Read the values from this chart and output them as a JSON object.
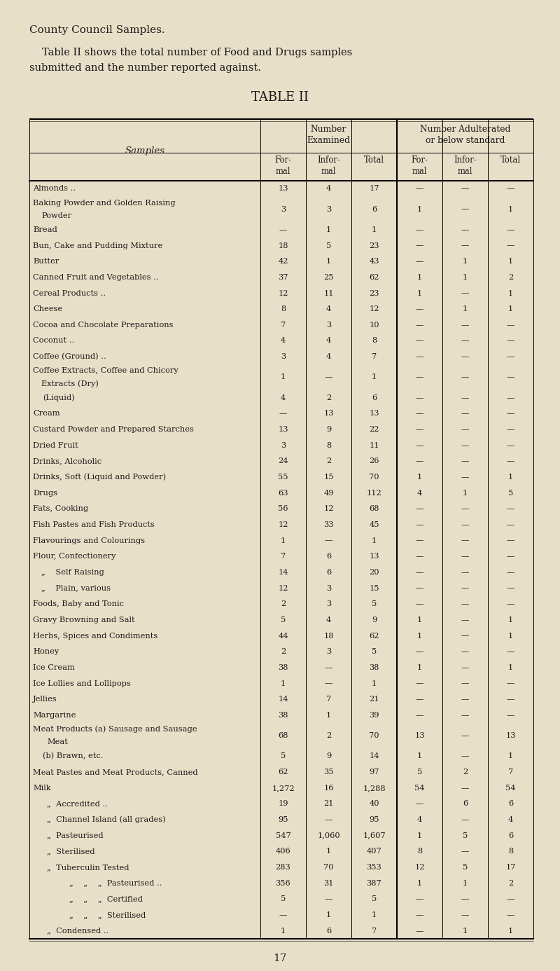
{
  "title_main": "County Council Samples.",
  "subtitle_line1": "Table II shows the total number of Food and Drugs samples",
  "subtitle_line2": "submitted and the number reported against.",
  "table_title": "TABLE II",
  "bg_color": "#e8dfc8",
  "rows": [
    [
      "Almonds ..",
      "13",
      "4",
      "17",
      "—",
      "—",
      "—"
    ],
    [
      "Baking Powder and Golden Raising\n    Powder",
      "3",
      "3",
      "6",
      "1",
      "—",
      "1"
    ],
    [
      "Bread",
      "—",
      "1",
      "1",
      "—",
      "—",
      "—"
    ],
    [
      "Bun, Cake and Pudding Mixture",
      "18",
      "5",
      "23",
      "—",
      "—",
      "—"
    ],
    [
      "Butter",
      "42",
      "1",
      "43",
      "—",
      "1",
      "1"
    ],
    [
      "Canned Fruit and Vegetables ..",
      "37",
      "25",
      "62",
      "1",
      "1",
      "2"
    ],
    [
      "Cereal Products ..",
      "12",
      "11",
      "23",
      "1",
      "—",
      "1"
    ],
    [
      "Cheese",
      "8",
      "4",
      "12",
      "—",
      "1",
      "1"
    ],
    [
      "Cocoa and Chocolate Preparations",
      "7",
      "3",
      "10",
      "—",
      "—",
      "—"
    ],
    [
      "Coconut ..",
      "4",
      "4",
      "8",
      "—",
      "—",
      "—"
    ],
    [
      "Coffee (Ground) ..",
      "3",
      "4",
      "7",
      "—",
      "—",
      "—"
    ],
    [
      "Coffee Extracts, Coffee and Chicory\n    Extracts (Dry)",
      "1",
      "—",
      "1",
      "—",
      "—",
      "—"
    ],
    [
      "    (Liquid)",
      "4",
      "2",
      "6",
      "—",
      "—",
      "—"
    ],
    [
      "Cream",
      "—",
      "13",
      "13",
      "—",
      "—",
      "—"
    ],
    [
      "Custard Powder and Prepared Starches",
      "13",
      "9",
      "22",
      "—",
      "—",
      "—"
    ],
    [
      "Dried Fruit",
      "3",
      "8",
      "11",
      "—",
      "—",
      "—"
    ],
    [
      "Drinks, Alcoholic",
      "24",
      "2",
      "26",
      "—",
      "—",
      "—"
    ],
    [
      "Drinks, Soft (Liquid and Powder)",
      "55",
      "15",
      "70",
      "1",
      "—",
      "1"
    ],
    [
      "Drugs",
      "63",
      "49",
      "112",
      "4",
      "1",
      "5"
    ],
    [
      "Fats, Cooking",
      "56",
      "12",
      "68",
      "—",
      "—",
      "—"
    ],
    [
      "Fish Pastes and Fish Products",
      "12",
      "33",
      "45",
      "—",
      "—",
      "—"
    ],
    [
      "Flavourings and Colourings",
      "1",
      "—",
      "1",
      "—",
      "—",
      "—"
    ],
    [
      "Flour, Confectionery",
      "7",
      "6",
      "13",
      "—",
      "—",
      "—"
    ],
    [
      "„    Self Raising",
      "14",
      "6",
      "20",
      "—",
      "—",
      "—"
    ],
    [
      "„    Plain, various",
      "12",
      "3",
      "15",
      "—",
      "—",
      "—"
    ],
    [
      "Foods, Baby and Tonic",
      "2",
      "3",
      "5",
      "—",
      "—",
      "—"
    ],
    [
      "Gravy Browning and Salt",
      "5",
      "4",
      "9",
      "1",
      "—",
      "1"
    ],
    [
      "Herbs, Spices and Condiments",
      "44",
      "18",
      "62",
      "1",
      "—",
      "1"
    ],
    [
      "Honey",
      "2",
      "3",
      "5",
      "—",
      "—",
      "—"
    ],
    [
      "Ice Cream",
      "38",
      "—",
      "38",
      "1",
      "—",
      "1"
    ],
    [
      "Ice Lollies and Lollipops",
      "1",
      "—",
      "1",
      "—",
      "—",
      "—"
    ],
    [
      "Jellies",
      "14",
      "7",
      "21",
      "—",
      "—",
      "—"
    ],
    [
      "Margarine",
      "38",
      "1",
      "39",
      "—",
      "—",
      "—"
    ],
    [
      "Meat Products (a) Sausage and Sausage\n        Meat",
      "68",
      "2",
      "70",
      "13",
      "—",
      "13"
    ],
    [
      "    (b) Brawn, etc.",
      "5",
      "9",
      "14",
      "1",
      "—",
      "1"
    ],
    [
      "Meat Pastes and Meat Products, Canned",
      "62",
      "35",
      "97",
      "5",
      "2",
      "7"
    ],
    [
      "Milk",
      "1,272",
      "16",
      "1,288",
      "54",
      "—",
      "54"
    ],
    [
      "  „  Accredited ..",
      "19",
      "21",
      "40",
      "—",
      "6",
      "6"
    ],
    [
      "  „  Channel Island (all grades)",
      "95",
      "—",
      "95",
      "4",
      "—",
      "4"
    ],
    [
      "  „  Pasteurised",
      "547",
      "1,060",
      "1,607",
      "1",
      "5",
      "6"
    ],
    [
      "  „  Sterilised",
      "406",
      "1",
      "407",
      "8",
      "—",
      "8"
    ],
    [
      "  „  Tuberculin Tested",
      "283",
      "70",
      "353",
      "12",
      "5",
      "17"
    ],
    [
      "  „    „    „  Pasteurised ..",
      "356",
      "31",
      "387",
      "1",
      "1",
      "2"
    ],
    [
      "  „    „    „  Certified",
      "5",
      "—",
      "5",
      "—",
      "—",
      "—"
    ],
    [
      "  „    „    „  Sterilised",
      "—",
      "1",
      "1",
      "—",
      "—",
      "—"
    ],
    [
      "  „  Condensed ..",
      "1",
      "6",
      "7",
      "—",
      "1",
      "1"
    ]
  ],
  "footer_text": "17"
}
